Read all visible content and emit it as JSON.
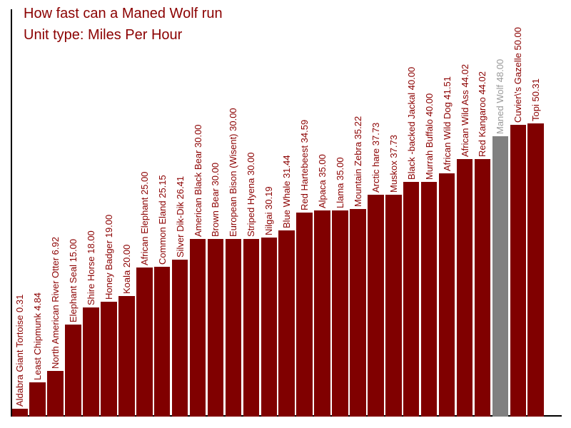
{
  "colors": {
    "bar": "#800000",
    "bar_highlight": "#808080",
    "label": "#8B0000",
    "label_highlight": "#9a9a9a",
    "title": "#8B0000",
    "axis": "#000000",
    "background": "#ffffff"
  },
  "chart_data": {
    "type": "bar",
    "title": "How fast can a Maned Wolf run",
    "subtitle": "Unit type: Miles Per Hour",
    "unit": "Miles Per Hour",
    "orientation": "vertical",
    "grid": false,
    "y_axis_labels_visible": false,
    "bar_label_format": "{name} {value:.2f}",
    "bar_label_rotation_deg": 90,
    "ylim": [
      0,
      70
    ],
    "highlighted_category": "Maned Wolf",
    "categories": [
      "Aldabra Giant Tortoise",
      "Least Chipmunk",
      "North American River Otter",
      "Elephant Seal",
      "Shire Horse",
      "Honey Badger",
      "Koala",
      "African Elephant",
      "Common Eland",
      "Silver Dik-Dik",
      "American Black Bear",
      "Brown Bear",
      "European Bison (Wisent)",
      "Striped Hyena",
      "Nilgai",
      "Blue Whale",
      "Red Hartebeest",
      "Alpaca",
      "Llama",
      "Mountain Zebra",
      "Arctic hare",
      "Muskox",
      "Black -backed Jackal",
      "Murrah Buffalo",
      "African Wild Dog",
      "African Wild Ass",
      "Red Kangaroo",
      "Maned Wolf",
      "Cuvier\\'s Gazelle",
      "Topi"
    ],
    "values": [
      0.31,
      4.84,
      6.92,
      15.0,
      18.0,
      19.0,
      20.0,
      25.0,
      25.15,
      26.41,
      30.0,
      30.0,
      30.0,
      30.0,
      30.19,
      31.44,
      34.59,
      35.0,
      35.0,
      35.22,
      37.73,
      37.73,
      40.0,
      40.0,
      41.51,
      44.02,
      44.02,
      48.0,
      50.0,
      50.31
    ],
    "bar_labels": [
      "Aldabra Giant Tortoise 0.31",
      "Least Chipmunk 4.84",
      "North American River Otter 6.92",
      "Elephant Seal 15.00",
      "Shire Horse 18.00",
      "Honey Badger 19.00",
      "Koala 20.00",
      "African Elephant 25.00",
      "Common Eland 25.15",
      "Silver Dik-Dik 26.41",
      "American Black Bear 30.00",
      "Brown Bear 30.00",
      "European Bison (Wisent) 30.00",
      "Striped Hyena 30.00",
      "Nilgai 30.19",
      "Blue Whale 31.44",
      "Red Hartebeest 34.59",
      "Alpaca 35.00",
      "Llama 35.00",
      "Mountain Zebra 35.22",
      "Arctic hare 37.73",
      "Muskox 37.73",
      "Black -backed Jackal 40.00",
      "Murrah Buffalo 40.00",
      "African Wild Dog 41.51",
      "African Wild Ass 44.02",
      "Red Kangaroo 44.02",
      "Maned Wolf 48.00",
      "Cuvier\\'s Gazelle 50.00",
      "Topi 50.31"
    ]
  }
}
